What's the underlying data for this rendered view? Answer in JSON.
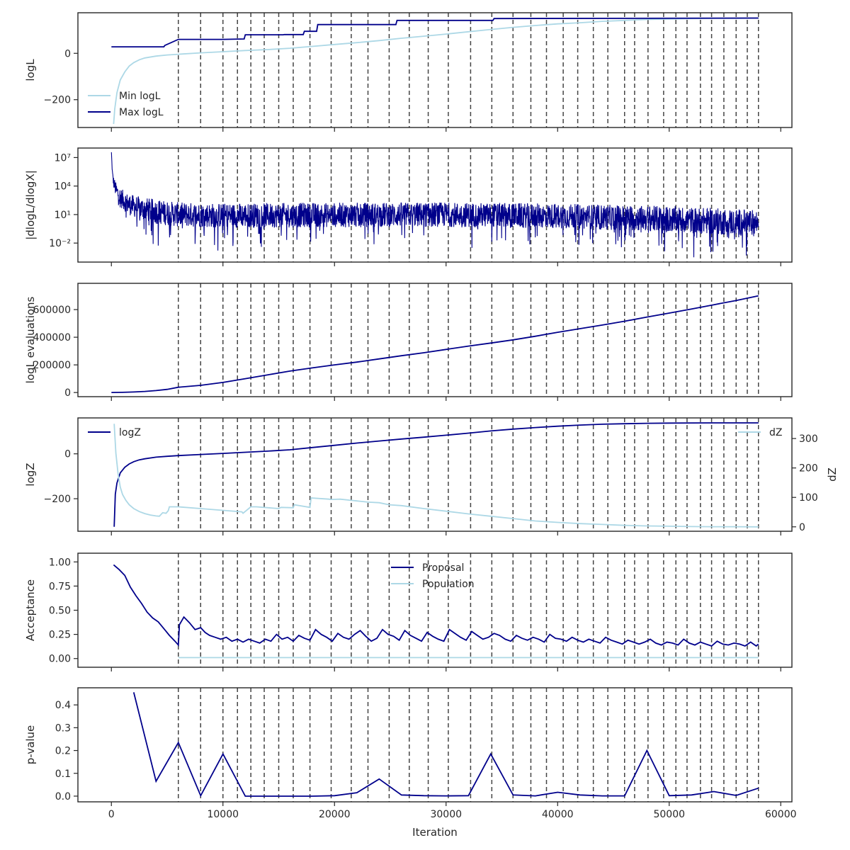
{
  "colors": {
    "dark": "#00008b",
    "light": "#add8e6",
    "axis": "#262626",
    "vline": "#444444"
  },
  "x_axis": {
    "range": [
      -3000,
      61000
    ],
    "ticks": [
      0,
      10000,
      20000,
      30000,
      40000,
      50000,
      60000
    ],
    "tick_labels": [
      "0",
      "10000",
      "20000",
      "30000",
      "40000",
      "50000",
      "60000"
    ],
    "label": "Iteration"
  },
  "vertical_lines": [
    6000,
    8000,
    10000,
    11300,
    12500,
    13700,
    15000,
    16300,
    17800,
    19700,
    21500,
    23000,
    24900,
    26700,
    28400,
    30200,
    32200,
    34100,
    36000,
    37600,
    39000,
    40500,
    41800,
    43200,
    44500,
    46000,
    46900,
    48100,
    49500,
    50600,
    51600,
    52800,
    53800,
    54900,
    56000,
    57000,
    58000
  ],
  "chart_data": [
    {
      "id": "loglike",
      "type": "line",
      "ylabel": "logL",
      "ylim": [
        -320,
        175
      ],
      "yticks": [
        -200,
        0
      ],
      "ytick_labels": [
        "−200",
        "0"
      ],
      "legend": "lower-left",
      "series": [
        {
          "name": "Min logL",
          "color": "light",
          "x": [
            200,
            300,
            500,
            800,
            1200,
            1600,
            2000,
            2500,
            3000,
            4000,
            5000,
            6000,
            8000,
            10000,
            12000,
            14000,
            16000,
            18000,
            20000,
            22000,
            24000,
            26000,
            28000,
            30000,
            32000,
            34000,
            36000,
            38000,
            40000,
            42000,
            44000,
            46000,
            48000,
            50000,
            52000,
            54000,
            56000,
            58000
          ],
          "y": [
            -305,
            -240,
            -170,
            -115,
            -80,
            -55,
            -40,
            -28,
            -20,
            -12,
            -7,
            -4,
            2,
            7,
            12,
            16,
            22,
            30,
            38,
            46,
            55,
            65,
            74,
            83,
            93,
            103,
            112,
            120,
            127,
            132,
            138,
            142,
            146,
            148,
            150,
            151,
            151,
            152
          ]
        },
        {
          "name": "Max logL",
          "color": "dark",
          "x": [
            0,
            4700,
            4800,
            6000,
            10000,
            11900,
            12000,
            15400,
            15500,
            17200,
            17300,
            18400,
            18500,
            25500,
            25600,
            34200,
            34300,
            58000
          ],
          "y": [
            28,
            28,
            34,
            60,
            60,
            62,
            80,
            80,
            81,
            81,
            95,
            95,
            124,
            124,
            142,
            142,
            150,
            152
          ]
        }
      ]
    },
    {
      "id": "dlogl",
      "type": "line",
      "ylabel": "|dlogL/dlogX|",
      "ylog": true,
      "ylim_log10": [
        -4,
        8
      ],
      "yticks_log10": [
        -2,
        1,
        4,
        7
      ],
      "ytick_labels": [
        "10⁻²",
        "10¹",
        "10⁴",
        "10⁷"
      ],
      "series": [
        {
          "name": "",
          "color": "dark",
          "x": [
            0,
            100,
            200,
            400,
            800,
            1500,
            2500,
            4000,
            6000,
            10000,
            20000,
            30000,
            40000,
            48000,
            55000,
            58000
          ],
          "center_log10": [
            7.5,
            5.2,
            4.4,
            3.6,
            2.8,
            2.1,
            1.7,
            1.3,
            1.0,
            0.9,
            0.95,
            1.0,
            0.85,
            0.6,
            0.25,
            0.1
          ],
          "spread_log10": [
            0.2,
            0.4,
            0.6,
            0.8,
            1.0,
            1.1,
            1.2,
            1.3,
            1.3,
            1.3,
            1.3,
            1.3,
            1.3,
            1.35,
            1.4,
            1.4
          ]
        }
      ]
    },
    {
      "id": "evals",
      "type": "line",
      "ylabel": "logL evaluations",
      "ylim": [
        -30000,
        790000
      ],
      "yticks": [
        0,
        200000,
        400000,
        600000
      ],
      "ytick_labels": [
        "0",
        "200000",
        "400000",
        "600000"
      ],
      "series": [
        {
          "name": "",
          "color": "dark",
          "x": [
            0,
            1000,
            2000,
            3000,
            4000,
            5000,
            6000,
            8000,
            10000,
            12000,
            14000,
            16000,
            18000,
            20000,
            22000,
            24000,
            26000,
            28000,
            30000,
            32000,
            34000,
            36000,
            38000,
            40000,
            42000,
            44000,
            46000,
            48000,
            50000,
            52000,
            54000,
            56000,
            58000
          ],
          "y": [
            0,
            1500,
            4000,
            8000,
            14000,
            23000,
            38000,
            52000,
            73000,
            100000,
            128000,
            155000,
            178000,
            200000,
            220000,
            243000,
            266000,
            288000,
            312000,
            336000,
            358000,
            381000,
            407000,
            436000,
            462000,
            488000,
            516000,
            546000,
            575000,
            604000,
            635000,
            666000,
            700000
          ]
        }
      ]
    },
    {
      "id": "logz",
      "type": "line",
      "ylabel": "logZ",
      "ylim": [
        -345,
        160
      ],
      "yticks": [
        -200,
        0
      ],
      "ytick_labels": [
        "−200",
        "0"
      ],
      "y2label": "dZ",
      "y2lim": [
        -15,
        370
      ],
      "y2ticks": [
        0,
        100,
        200,
        300
      ],
      "y2tick_labels": [
        "0",
        "100",
        "200",
        "300"
      ],
      "legend": "top-left, top-right",
      "series": [
        {
          "name": "logZ",
          "color": "dark",
          "axis": "left",
          "x": [
            250,
            350,
            500,
            800,
            1200,
            1600,
            2000,
            2500,
            3000,
            4000,
            5000,
            6000,
            8000,
            10000,
            12000,
            14000,
            16000,
            18000,
            20000,
            22000,
            24000,
            26000,
            28000,
            30000,
            32000,
            34000,
            36000,
            38000,
            40000,
            42000,
            44000,
            46000,
            48000,
            50000,
            52000,
            54000,
            56000,
            58000
          ],
          "y": [
            -325,
            -180,
            -130,
            -85,
            -60,
            -45,
            -35,
            -27,
            -22,
            -15,
            -11,
            -8,
            -3,
            2,
            7,
            12,
            18,
            28,
            38,
            48,
            57,
            66,
            74,
            83,
            92,
            102,
            110,
            117,
            123,
            128,
            132,
            134,
            136,
            137,
            137.5,
            138,
            138,
            138
          ]
        },
        {
          "name": "dZ",
          "color": "light",
          "axis": "right",
          "x": [
            250,
            400,
            600,
            800,
            1000,
            1300,
            1600,
            2000,
            2500,
            3000,
            3500,
            4000,
            4300,
            4600,
            4900,
            5100,
            5200,
            6000,
            8000,
            10000,
            11700,
            11800,
            12500,
            13000,
            15000,
            15200,
            16300,
            16400,
            17800,
            17900,
            19500,
            19700,
            20500,
            21500,
            22000,
            23000,
            24000,
            24900,
            26000,
            28000,
            30000,
            32000,
            34000,
            36000,
            38000,
            40000,
            42000,
            44000,
            46000,
            48000,
            50000,
            52000,
            54000,
            56000,
            58000
          ],
          "y": [
            350,
            250,
            180,
            135,
            110,
            90,
            75,
            62,
            52,
            45,
            40,
            37,
            36,
            48,
            46,
            55,
            68,
            68,
            62,
            56,
            51,
            46,
            68,
            68,
            62,
            66,
            65,
            75,
            66,
            98,
            94,
            93,
            94,
            90,
            88,
            84,
            82,
            75,
            72,
            62,
            53,
            44,
            36,
            28,
            20,
            15,
            11,
            8,
            5,
            3,
            2,
            1,
            0.5,
            0.3,
            0
          ]
        }
      ]
    },
    {
      "id": "acceptance",
      "type": "line",
      "ylabel": "Acceptance",
      "ylim": [
        -0.09,
        1.09
      ],
      "yticks": [
        0,
        0.25,
        0.5,
        0.75,
        1.0
      ],
      "ytick_labels": [
        "0.00",
        "0.25",
        "0.50",
        "0.75",
        "1.00"
      ],
      "legend": "top-center",
      "series": [
        {
          "name": "Proposal",
          "color": "dark",
          "x": [
            200,
            700,
            1200,
            1700,
            2200,
            2700,
            3200,
            3700,
            4200,
            4700,
            5200,
            5700,
            6000,
            6100,
            6500,
            7000,
            7500,
            8000,
            8400,
            8800,
            9300,
            9800,
            10300,
            10800,
            11300,
            11800,
            12300,
            12800,
            13300,
            13800,
            14300,
            14800,
            15300,
            15800,
            16300,
            16800,
            17300,
            17800,
            18300,
            18800,
            19300,
            19800,
            20300,
            20800,
            21300,
            21800,
            22300,
            22800,
            23300,
            23800,
            24300,
            24800,
            25300,
            25800,
            26300,
            26800,
            27300,
            27800,
            28300,
            28800,
            29300,
            29800,
            30300,
            30800,
            31300,
            31800,
            32300,
            32800,
            33300,
            33800,
            34300,
            34800,
            35300,
            35800,
            36300,
            36800,
            37300,
            37800,
            38300,
            38800,
            39300,
            39800,
            40300,
            40800,
            41300,
            41800,
            42300,
            42800,
            43300,
            43800,
            44300,
            44800,
            45300,
            45800,
            46300,
            46800,
            47300,
            47800,
            48300,
            48800,
            49300,
            49800,
            50300,
            50800,
            51300,
            51800,
            52300,
            52800,
            53300,
            53800,
            54300,
            54800,
            55300,
            55800,
            56300,
            56800,
            57300,
            57800,
            58000
          ],
          "y": [
            0.97,
            0.92,
            0.86,
            0.74,
            0.65,
            0.57,
            0.48,
            0.42,
            0.38,
            0.31,
            0.24,
            0.18,
            0.14,
            0.35,
            0.43,
            0.37,
            0.3,
            0.32,
            0.27,
            0.24,
            0.22,
            0.2,
            0.22,
            0.18,
            0.2,
            0.17,
            0.2,
            0.18,
            0.16,
            0.2,
            0.18,
            0.25,
            0.2,
            0.22,
            0.18,
            0.24,
            0.21,
            0.19,
            0.3,
            0.25,
            0.22,
            0.18,
            0.26,
            0.22,
            0.2,
            0.25,
            0.29,
            0.23,
            0.18,
            0.21,
            0.3,
            0.25,
            0.23,
            0.19,
            0.29,
            0.24,
            0.21,
            0.18,
            0.27,
            0.23,
            0.2,
            0.18,
            0.3,
            0.26,
            0.22,
            0.19,
            0.28,
            0.24,
            0.2,
            0.22,
            0.26,
            0.24,
            0.2,
            0.18,
            0.24,
            0.21,
            0.19,
            0.22,
            0.2,
            0.17,
            0.25,
            0.21,
            0.2,
            0.18,
            0.22,
            0.19,
            0.17,
            0.2,
            0.18,
            0.16,
            0.22,
            0.19,
            0.17,
            0.15,
            0.19,
            0.17,
            0.15,
            0.17,
            0.2,
            0.16,
            0.14,
            0.17,
            0.16,
            0.14,
            0.2,
            0.16,
            0.14,
            0.17,
            0.15,
            0.13,
            0.18,
            0.15,
            0.14,
            0.16,
            0.15,
            0.13,
            0.17,
            0.13,
            0.15
          ]
        },
        {
          "name": "Population",
          "color": "light",
          "x": [
            6000,
            58000
          ],
          "y": [
            0.01,
            0.01
          ]
        }
      ]
    },
    {
      "id": "pvalue",
      "type": "line",
      "ylabel": "p-value",
      "ylim": [
        -0.025,
        0.475
      ],
      "yticks": [
        0,
        0.1,
        0.2,
        0.3,
        0.4
      ],
      "ytick_labels": [
        "0.0",
        "0.1",
        "0.2",
        "0.3",
        "0.4"
      ],
      "series": [
        {
          "name": "",
          "color": "dark",
          "x": [
            2000,
            4000,
            6000,
            8000,
            10000,
            12000,
            14000,
            16000,
            18000,
            20000,
            22000,
            24000,
            26000,
            28000,
            30000,
            32000,
            34000,
            36000,
            38000,
            40000,
            42000,
            44000,
            46000,
            48000,
            50000,
            52000,
            54000,
            56000,
            58000
          ],
          "y": [
            0.455,
            0.065,
            0.235,
            0.002,
            0.185,
            0.0,
            0.0,
            0.0,
            0.0,
            0.002,
            0.015,
            0.075,
            0.005,
            0.002,
            0.001,
            0.002,
            0.185,
            0.005,
            0.001,
            0.017,
            0.005,
            0.001,
            0.001,
            0.2,
            0.002,
            0.005,
            0.02,
            0.003,
            0.035
          ]
        }
      ]
    }
  ]
}
